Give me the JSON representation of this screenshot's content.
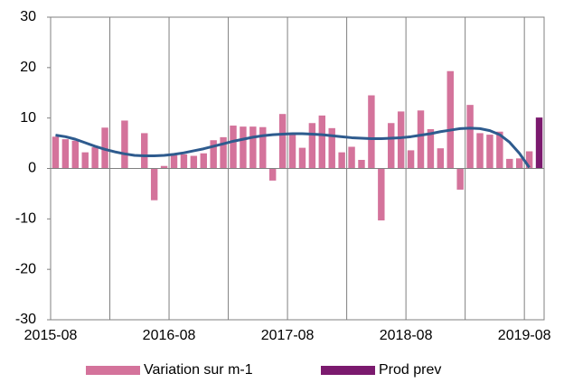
{
  "chart_data": {
    "type": "bar",
    "categories": [
      "2015-08",
      null,
      null,
      null,
      null,
      null,
      null,
      null,
      null,
      null,
      null,
      null,
      "2016-08",
      null,
      null,
      null,
      null,
      null,
      null,
      null,
      null,
      null,
      null,
      null,
      "2017-08",
      null,
      null,
      null,
      null,
      null,
      null,
      null,
      null,
      null,
      null,
      null,
      "2018-08",
      null,
      null,
      null,
      null,
      null,
      null,
      null,
      null,
      null,
      null,
      null,
      "2019-08",
      null
    ],
    "series": [
      {
        "name": "Variation sur m-1",
        "color": "#d4739b",
        "type": "bar",
        "values": [
          6.3,
          5.8,
          5.5,
          3.2,
          4.2,
          8.1,
          0,
          9.5,
          0,
          7,
          -6.3,
          0.5,
          2.6,
          2.8,
          2.5,
          3,
          5.6,
          6.2,
          8.5,
          8.3,
          8.3,
          8.2,
          -2.4,
          10.8,
          7,
          4.1,
          9,
          10.5,
          8,
          3.2,
          4.3,
          1.7,
          14.5,
          -10.3,
          9,
          11.3,
          3.6,
          11.5,
          7.8,
          4,
          19.3,
          -4.2,
          12.6,
          7,
          6.7,
          7.3,
          1.9,
          2,
          3.4,
          null
        ]
      },
      {
        "name": "Prod prev",
        "color": "#7b1a6e",
        "type": "bar",
        "values": [
          null,
          null,
          null,
          null,
          null,
          null,
          null,
          null,
          null,
          null,
          null,
          null,
          null,
          null,
          null,
          null,
          null,
          null,
          null,
          null,
          null,
          null,
          null,
          null,
          null,
          null,
          null,
          null,
          null,
          null,
          null,
          null,
          null,
          null,
          null,
          null,
          null,
          null,
          null,
          null,
          null,
          null,
          null,
          null,
          null,
          null,
          null,
          null,
          null,
          10.1
        ]
      },
      {
        "color": "#2e5b8e",
        "type": "line",
        "values": [
          6.6,
          6.3,
          5.8,
          5.1,
          4.4,
          3.8,
          3.3,
          2.9,
          2.6,
          2.5,
          2.5,
          2.6,
          2.8,
          3.1,
          3.5,
          3.9,
          4.4,
          4.9,
          5.4,
          5.8,
          6.2,
          6.5,
          6.7,
          6.8,
          6.9,
          6.9,
          6.8,
          6.7,
          6.5,
          6.3,
          6.1,
          6.0,
          5.9,
          5.9,
          6.0,
          6.1,
          6.3,
          6.6,
          6.9,
          7.3,
          7.6,
          7.9,
          8.0,
          7.9,
          7.5,
          6.7,
          5.2,
          3.0,
          0.2,
          null
        ]
      }
    ],
    "ylim": [
      -30,
      30
    ],
    "yticks": [
      -30,
      -20,
      -10,
      0,
      10,
      20,
      30
    ],
    "grid": "vertical",
    "legend": "bottom"
  }
}
